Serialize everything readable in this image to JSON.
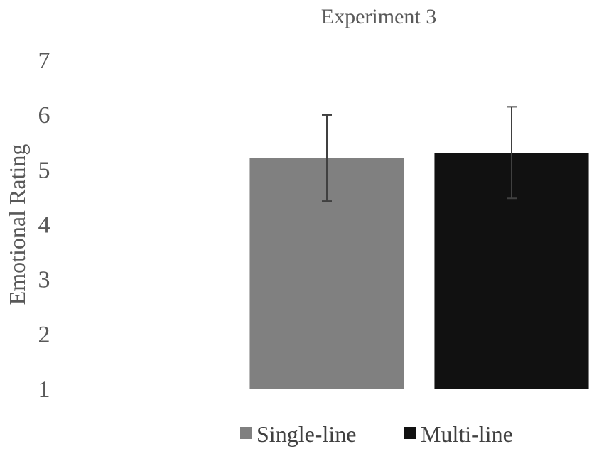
{
  "chart_data": {
    "type": "bar",
    "title": "Experiment 3",
    "ylabel": "Emotional Rating",
    "xlabel": "",
    "ylim": [
      1,
      7
    ],
    "yticks": [
      1,
      2,
      3,
      4,
      5,
      6,
      7
    ],
    "grid": false,
    "legend": "bottom",
    "series": [
      {
        "name": "Single-line",
        "value": 5.2,
        "error_low": 4.42,
        "error_high": 5.99,
        "color": "#808080"
      },
      {
        "name": "Multi-line",
        "value": 5.3,
        "error_low": 4.47,
        "error_high": 6.14,
        "color": "#111111"
      }
    ]
  }
}
